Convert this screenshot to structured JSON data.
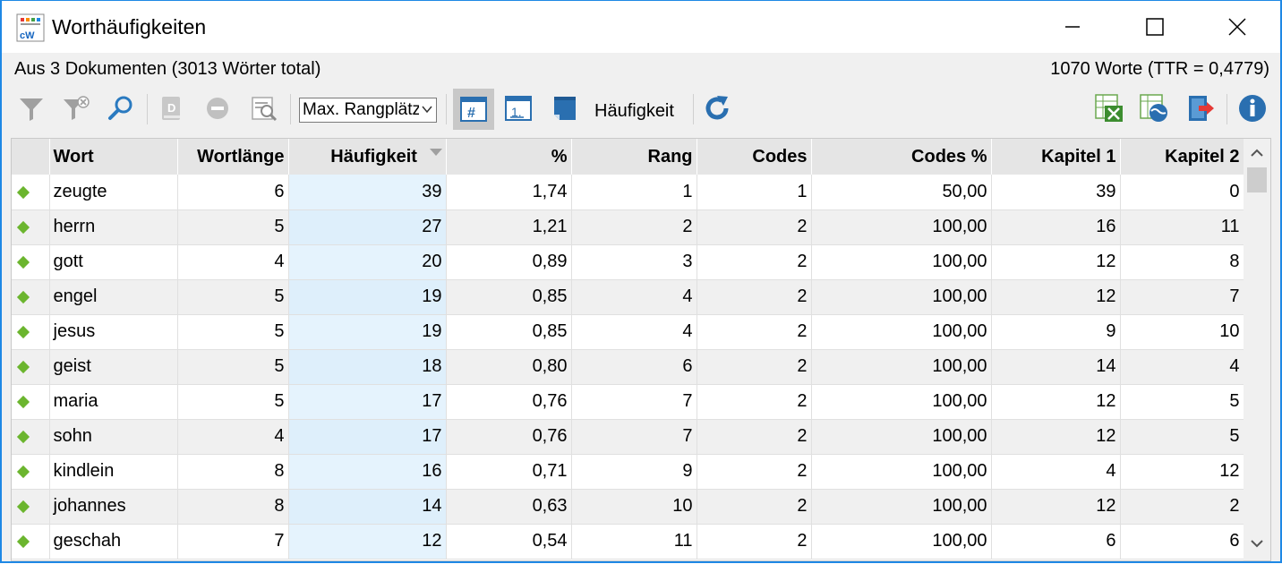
{
  "window": {
    "title": "Worthäufigkeiten",
    "app_icon": "word-frequency-app-icon"
  },
  "info": {
    "left": "Aus 3 Dokumenten (3013 Wörter total)",
    "right": "1070 Worte (TTR = 0,4779)"
  },
  "toolbar": {
    "rank_select_value": "Max. Rangplätze",
    "sort_label": "Häufigkeit",
    "icons": [
      "filter-icon",
      "clear-filter-icon",
      "search-icon",
      "dictionary-icon",
      "remove-icon",
      "search-list-icon",
      "frequency-view-icon",
      "rank-view-icon",
      "document-view-icon",
      "refresh-icon",
      "excel-export-icon",
      "web-export-icon",
      "export-icon",
      "info-icon"
    ]
  },
  "table": {
    "columns": [
      "",
      "Wort",
      "Wortlänge",
      "Häufigkeit",
      "%",
      "Rang",
      "Codes",
      "Codes %",
      "Kapitel 1",
      "Kapitel 2"
    ],
    "sorted_column": "Häufigkeit",
    "rows": [
      [
        "zeugte",
        "6",
        "39",
        "1,74",
        "1",
        "1",
        "50,00",
        "39",
        "0"
      ],
      [
        "herrn",
        "5",
        "27",
        "1,21",
        "2",
        "2",
        "100,00",
        "16",
        "11"
      ],
      [
        "gott",
        "4",
        "20",
        "0,89",
        "3",
        "2",
        "100,00",
        "12",
        "8"
      ],
      [
        "engel",
        "5",
        "19",
        "0,85",
        "4",
        "2",
        "100,00",
        "12",
        "7"
      ],
      [
        "jesus",
        "5",
        "19",
        "0,85",
        "4",
        "2",
        "100,00",
        "9",
        "10"
      ],
      [
        "geist",
        "5",
        "18",
        "0,80",
        "6",
        "2",
        "100,00",
        "14",
        "4"
      ],
      [
        "maria",
        "5",
        "17",
        "0,76",
        "7",
        "2",
        "100,00",
        "12",
        "5"
      ],
      [
        "sohn",
        "4",
        "17",
        "0,76",
        "7",
        "2",
        "100,00",
        "12",
        "5"
      ],
      [
        "kindlein",
        "8",
        "16",
        "0,71",
        "9",
        "2",
        "100,00",
        "4",
        "12"
      ],
      [
        "johannes",
        "8",
        "14",
        "0,63",
        "10",
        "2",
        "100,00",
        "12",
        "2"
      ],
      [
        "geschah",
        "7",
        "12",
        "0,54",
        "11",
        "2",
        "100,00",
        "6",
        "6"
      ]
    ]
  },
  "colors": {
    "accent": "#1e88e5",
    "row_marker": "#6bb52e",
    "sorted_column": "#e5f3fd"
  }
}
